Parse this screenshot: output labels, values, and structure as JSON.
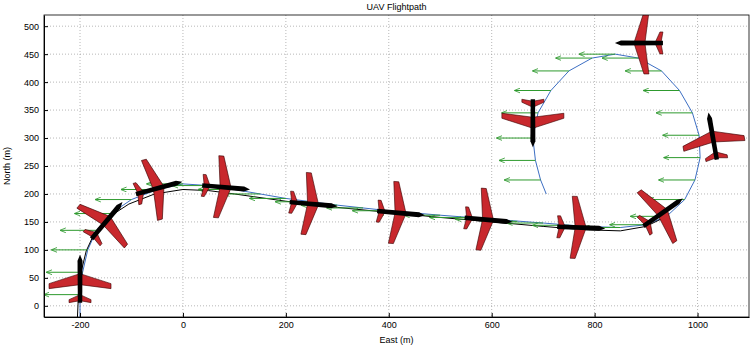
{
  "chart_data": {
    "type": "line",
    "title": "UAV Flightpath",
    "x_label": "East (m)",
    "y_label": "North (m)",
    "xlim": [
      -270,
      1100
    ],
    "ylim": [
      -20,
      520
    ],
    "xticks": [
      -200,
      0,
      200,
      400,
      600,
      800,
      1000
    ],
    "yticks": [
      0,
      50,
      100,
      150,
      200,
      250,
      300,
      350,
      400,
      450,
      500
    ],
    "grid": true,
    "series": [
      {
        "type": "line",
        "color": "#3d6fc4",
        "line_style": "solid",
        "x": [
          -200,
          -200,
          -195,
          -185,
          -168,
          -140,
          -100,
          -50,
          0,
          50,
          100,
          200,
          300,
          400,
          500,
          600,
          700,
          780,
          850,
          900,
          940,
          975,
          995,
          1005,
          1003,
          990,
          965,
          930,
          885,
          840,
          795,
          750,
          715,
          690,
          680,
          685,
          695,
          706
        ],
        "values": [
          -20,
          20,
          60,
          100,
          135,
          165,
          190,
          208,
          218,
          215,
          208,
          192,
          180,
          170,
          162,
          155,
          148,
          142,
          140,
          145,
          160,
          190,
          225,
          265,
          305,
          345,
          385,
          420,
          443,
          450,
          443,
          420,
          385,
          345,
          300,
          260,
          225,
          200
        ]
      },
      {
        "type": "line",
        "color": "#000000",
        "line_style": "solid",
        "x": [
          -205,
          -203,
          -198,
          -188,
          -172,
          -145,
          -105,
          -55,
          0,
          50,
          100,
          200,
          300,
          400,
          500,
          600,
          700,
          780,
          850,
          900,
          940
        ],
        "values": [
          -20,
          20,
          60,
          98,
          130,
          158,
          182,
          200,
          208,
          206,
          200,
          187,
          176,
          167,
          158,
          150,
          142,
          136,
          134,
          142,
          160
        ]
      },
      {
        "type": "quiver",
        "color": "#2e9a2e",
        "x": [
          -200,
          -195,
          -185,
          -168,
          -140,
          -100,
          -50,
          0,
          50,
          100,
          150,
          200,
          250,
          300,
          350,
          400,
          450,
          500,
          550,
          600,
          650,
          700,
          750,
          800,
          850,
          900,
          940,
          975,
          995,
          1005,
          1003,
          990,
          965,
          930,
          885,
          840,
          795,
          750,
          715,
          690,
          680,
          685,
          695
        ],
        "values": [
          20,
          60,
          100,
          135,
          165,
          190,
          208,
          218,
          215,
          208,
          200,
          192,
          186,
          180,
          175,
          170,
          166,
          162,
          158,
          155,
          151,
          148,
          144,
          141,
          140,
          145,
          160,
          190,
          225,
          265,
          305,
          345,
          385,
          420,
          443,
          450,
          443,
          420,
          385,
          345,
          300,
          260,
          225
        ],
        "u": [
          -70,
          -70,
          -70,
          -70,
          -70,
          -70,
          -70,
          -70,
          -70,
          -70,
          -70,
          -70,
          -70,
          -70,
          -70,
          -70,
          -70,
          -70,
          -70,
          -70,
          -70,
          -70,
          -70,
          -70,
          -70,
          -70,
          -70,
          -70,
          -70,
          -70,
          -70,
          -70,
          -70,
          -70,
          -70,
          -70,
          -70,
          -70,
          -70,
          -70,
          -70,
          -70,
          -70
        ]
      },
      {
        "type": "aircraft",
        "color": "#c8282d",
        "marker": "airplane",
        "x": [
          -200,
          -150,
          -50,
          80,
          250,
          420,
          590,
          770,
          930,
          1030,
          890,
          680
        ],
        "values": [
          45,
          150,
          210,
          212,
          182,
          166,
          154,
          140,
          165,
          300,
          470,
          330
        ],
        "heading": [
          0,
          40,
          75,
          95,
          95,
          95,
          95,
          92,
          55,
          -10,
          -90,
          180
        ]
      }
    ]
  }
}
